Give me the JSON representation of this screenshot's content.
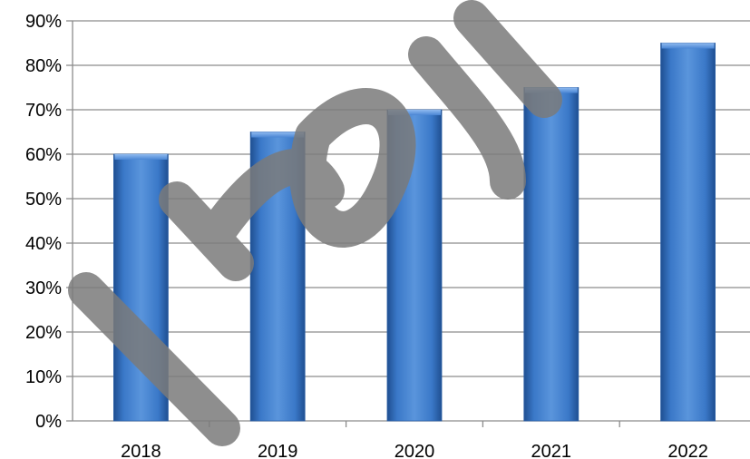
{
  "chart_data": {
    "type": "bar",
    "categories": [
      "2018",
      "2019",
      "2020",
      "2021",
      "2022"
    ],
    "values": [
      60,
      65,
      70,
      75,
      85
    ],
    "ylim": [
      0,
      90
    ],
    "yticks": [
      0,
      10,
      20,
      30,
      40,
      50,
      60,
      70,
      80,
      90
    ],
    "ytick_suffix": "%",
    "grid": true,
    "legend": "none",
    "bar_color": "#3f7fcf",
    "grid_color": "#8c8c8c"
  },
  "watermark": {
    "text": "prosin",
    "color": "#7a7a7a"
  }
}
